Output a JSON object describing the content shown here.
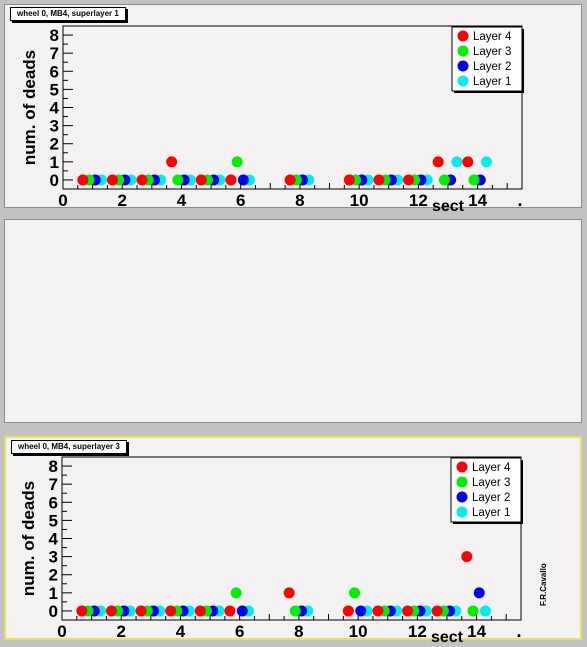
{
  "chart_data": [
    {
      "type": "scatter",
      "title": "wheel 0, MB4, superlayer 1",
      "xlabel": "sect",
      "ylabel": "num. of deads",
      "xlim": [
        0,
        15.5
      ],
      "ylim": [
        -0.5,
        8.5
      ],
      "xticks": [
        0,
        2,
        4,
        6,
        8,
        10,
        12,
        14
      ],
      "yticks": [
        0,
        1,
        2,
        3,
        4,
        5,
        6,
        7,
        8
      ],
      "legend_position": "top-right",
      "x": [
        1,
        2,
        3,
        4,
        5,
        6,
        7,
        8,
        9,
        10,
        11,
        12,
        13,
        14
      ],
      "series": [
        {
          "name": "Layer 4",
          "color": "#ff0000",
          "values": [
            0,
            0,
            0,
            1,
            0,
            0,
            null,
            0,
            null,
            0,
            0,
            0,
            1,
            1
          ]
        },
        {
          "name": "Layer 3",
          "color": "#00ee00",
          "values": [
            0,
            0,
            0,
            0,
            0,
            1,
            null,
            0,
            null,
            0,
            0,
            0,
            0,
            0
          ]
        },
        {
          "name": "Layer 2",
          "color": "#0000ee",
          "values": [
            0,
            0,
            0,
            0,
            0,
            0,
            null,
            0,
            null,
            0,
            0,
            0,
            0,
            0
          ]
        },
        {
          "name": "Layer 1",
          "color": "#00eeee",
          "values": [
            0,
            0,
            0,
            0,
            0,
            0,
            null,
            0,
            null,
            0,
            0,
            0,
            1,
            1
          ]
        }
      ]
    },
    {
      "type": "scatter",
      "title": "wheel 0, MB4, superlayer 3",
      "xlabel": "sect",
      "ylabel": "num. of deads",
      "xlim": [
        0,
        15.5
      ],
      "ylim": [
        -0.5,
        8.5
      ],
      "xticks": [
        0,
        2,
        4,
        6,
        8,
        10,
        12,
        14
      ],
      "yticks": [
        0,
        1,
        2,
        3,
        4,
        5,
        6,
        7,
        8
      ],
      "legend_position": "top-right",
      "x": [
        1,
        2,
        3,
        4,
        5,
        6,
        7,
        8,
        9,
        10,
        11,
        12,
        13,
        14
      ],
      "series": [
        {
          "name": "Layer 4",
          "color": "#ff0000",
          "values": [
            0,
            0,
            0,
            0,
            0,
            0,
            null,
            1,
            null,
            0,
            0,
            0,
            0,
            3
          ]
        },
        {
          "name": "Layer 3",
          "color": "#00ee00",
          "values": [
            0,
            0,
            0,
            0,
            0,
            1,
            null,
            0,
            null,
            1,
            0,
            0,
            0,
            0
          ]
        },
        {
          "name": "Layer 2",
          "color": "#0000ee",
          "values": [
            0,
            0,
            0,
            0,
            0,
            0,
            null,
            0,
            null,
            0,
            0,
            0,
            0,
            1
          ]
        },
        {
          "name": "Layer 1",
          "color": "#00eeee",
          "values": [
            0,
            0,
            0,
            0,
            0,
            0,
            null,
            0,
            null,
            0,
            0,
            0,
            0,
            0
          ]
        }
      ]
    }
  ],
  "x_end_mark": ".",
  "credit": "F.R.Cavallo"
}
